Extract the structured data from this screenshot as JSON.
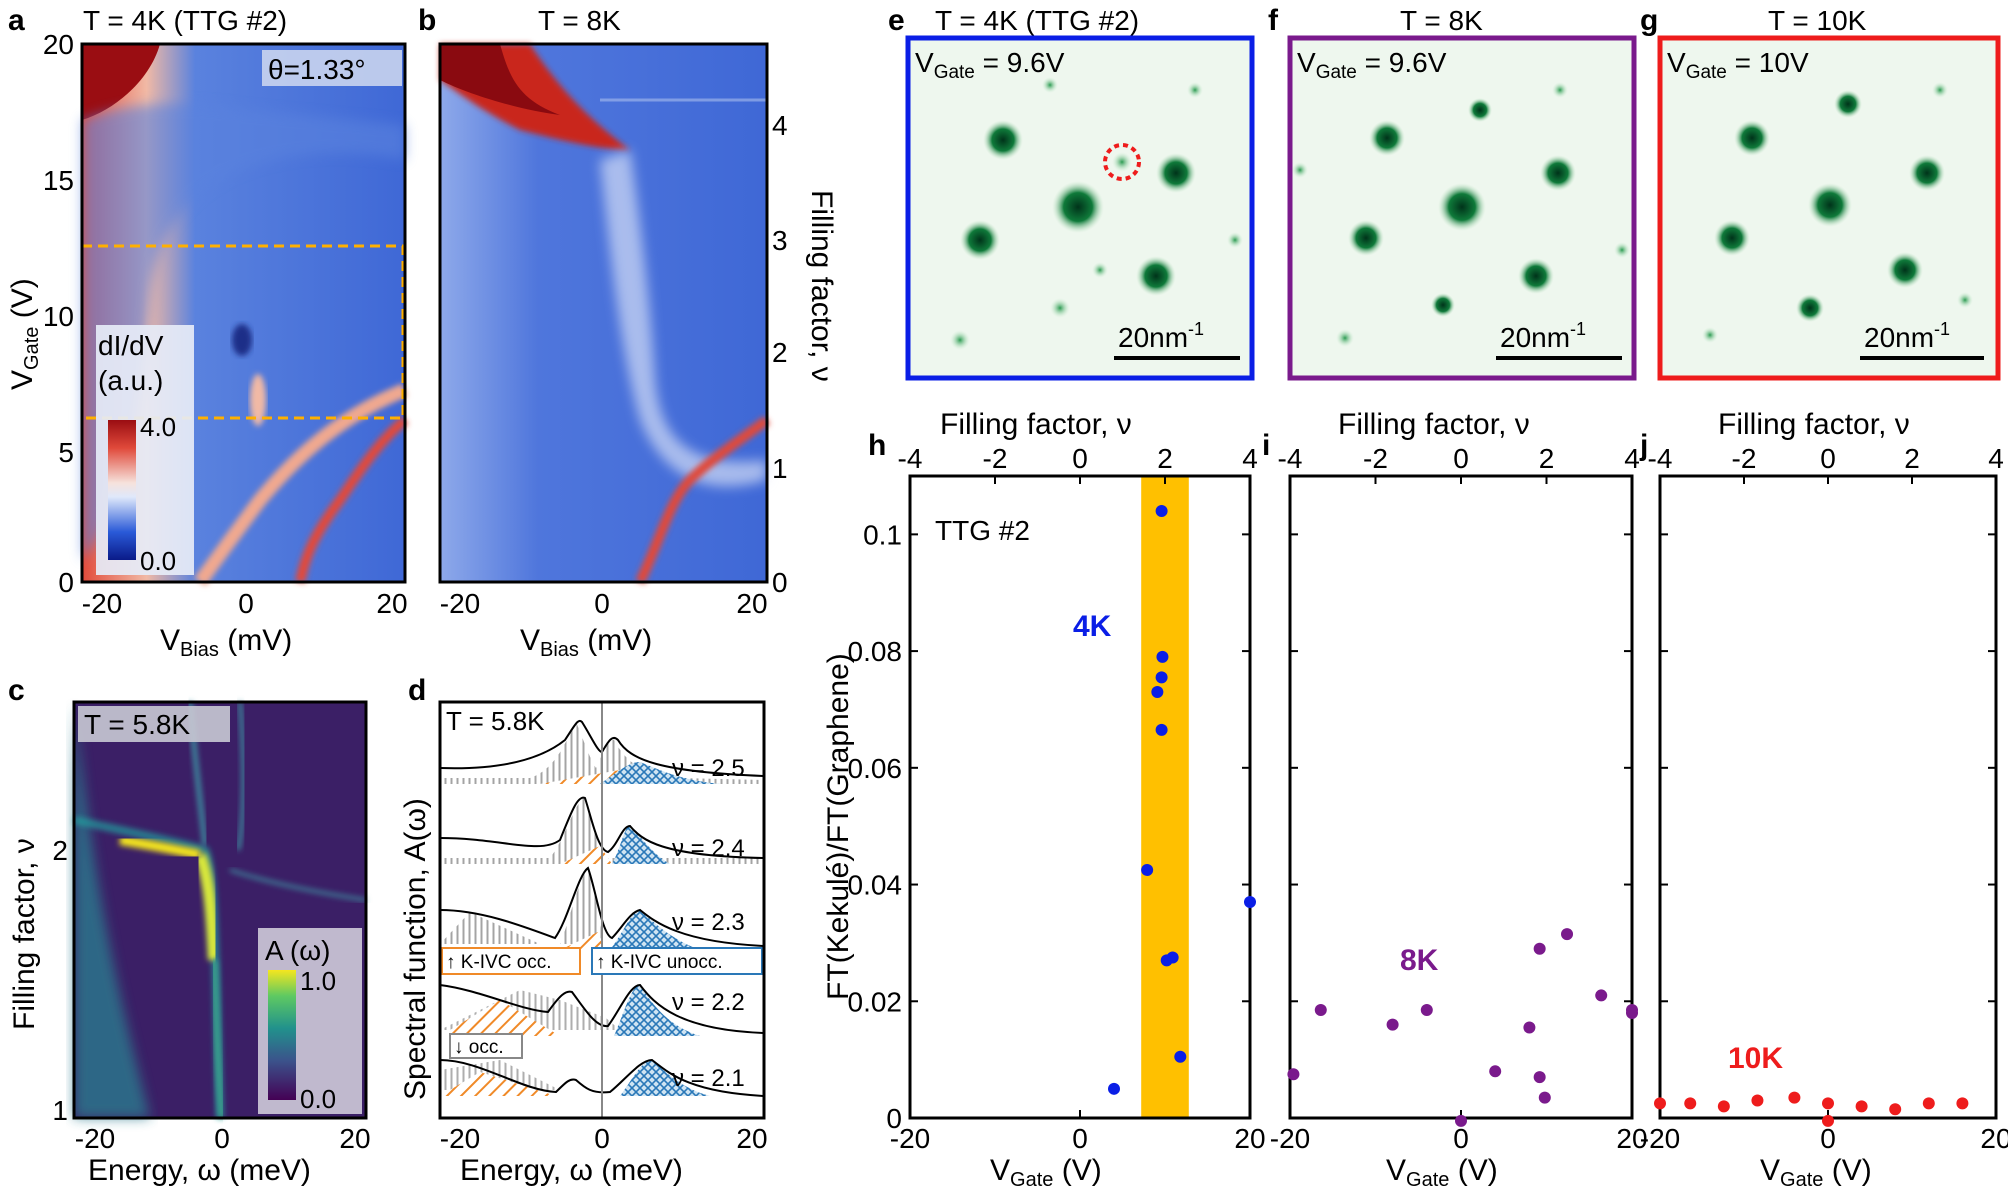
{
  "panels": {
    "a": {
      "letter": "a",
      "title": "T = 4K (TTG #2)",
      "theta": "θ=1.33°",
      "y_ticks": [
        "20",
        "15",
        "10",
        "5",
        "0"
      ],
      "x_ticks": [
        "-20",
        "0",
        "20"
      ],
      "ylabel_main": "V",
      "ylabel_sub": "Gate",
      "ylabel_unit": " (V)",
      "xlabel_main": "V",
      "xlabel_sub": "Bias",
      "xlabel_unit": " (mV)",
      "cbar_label1": "dI/dV",
      "cbar_label2": "(a.u.)",
      "cbar_max": "4.0",
      "cbar_min": "0.0"
    },
    "b": {
      "letter": "b",
      "title": "T = 8K",
      "y_ticks": [
        "4",
        "3",
        "2",
        "1",
        "0"
      ],
      "x_ticks": [
        "-20",
        "0",
        "20"
      ],
      "ylabel": "Filling factor, ν",
      "xlabel_main": "V",
      "xlabel_sub": "Bias",
      "xlabel_unit": " (mV)"
    },
    "c": {
      "letter": "c",
      "title": "T = 5.8K",
      "y_ticks": [
        "2",
        "1"
      ],
      "x_ticks": [
        "-20",
        "0",
        "20"
      ],
      "ylabel": "Filling factor, ν",
      "xlabel": "Energy, ω (meV)",
      "cbar_label": "A (ω)",
      "cbar_max": "1.0",
      "cbar_min": "0.0"
    },
    "d": {
      "letter": "d",
      "title": "T = 5.8K",
      "curves": [
        "ν = 2.5",
        "ν = 2.4",
        "ν = 2.3",
        "ν = 2.2",
        "ν = 2.1"
      ],
      "legend_occ": "↑ K-IVC occ.",
      "legend_unocc": "↑ K-IVC unocc.",
      "legend_down": "↓ occ.",
      "x_ticks": [
        "-20",
        "0",
        "20"
      ],
      "ylabel": "Spectral function, A(ω)",
      "xlabel": "Energy, ω (meV)"
    },
    "e": {
      "letter": "e",
      "title": "T = 4K (TTG #2)",
      "gate_main": "V",
      "gate_sub": "Gate",
      "gate_val": " = 9.6V",
      "scale": "20nm",
      "scale_sup": "-1"
    },
    "f": {
      "letter": "f",
      "title": "T = 8K",
      "gate_main": "V",
      "gate_sub": "Gate",
      "gate_val": " = 9.6V",
      "scale": "20nm",
      "scale_sup": "-1"
    },
    "g": {
      "letter": "g",
      "title": "T = 10K",
      "gate_main": "V",
      "gate_sub": "Gate",
      "gate_val": " = 10V",
      "scale": "20nm",
      "scale_sup": "-1"
    },
    "h": {
      "letter": "h",
      "top_label": "Filling factor, ν",
      "sample": "TTG #2",
      "temp_label": "4K",
      "ylabel": "FT(Kekulé)/FT(Graphene)",
      "xlabel_main": "V",
      "xlabel_sub": "Gate",
      "xlabel_unit": " (V)"
    },
    "i": {
      "letter": "i",
      "top_label": "Filling factor, ν",
      "temp_label": "8K",
      "xlabel_main": "V",
      "xlabel_sub": "Gate",
      "xlabel_unit": " (V)"
    },
    "j": {
      "letter": "j",
      "top_label": "Filling factor, ν",
      "temp_label": "10K",
      "xlabel_main": "V",
      "xlabel_sub": "Gate",
      "xlabel_unit": " (V)"
    }
  },
  "colors": {
    "blue": "#0a1ee6",
    "purple": "#7a1a8c",
    "red": "#ee1c1c",
    "gold": "#ffc000"
  },
  "chart_data": [
    {
      "panel": "h",
      "type": "scatter",
      "series_name": "4K",
      "color": "#0a1ee6",
      "xlim": [
        -20,
        20
      ],
      "ylim": [
        0,
        0.11
      ],
      "x_ticks": [
        -20,
        0,
        20
      ],
      "y_ticks": [
        0,
        0.02,
        0.04,
        0.06,
        0.08,
        0.1
      ],
      "top_ticks": [
        -4,
        -2,
        0,
        2,
        4
      ],
      "highlight_band": {
        "x_from": 7.2,
        "x_to": 12.8
      },
      "points": [
        {
          "x": 9.6,
          "y": 0.104
        },
        {
          "x": 9.7,
          "y": 0.079
        },
        {
          "x": 9.6,
          "y": 0.0755
        },
        {
          "x": 9.1,
          "y": 0.073
        },
        {
          "x": 9.6,
          "y": 0.0665
        },
        {
          "x": 7.9,
          "y": 0.0425
        },
        {
          "x": 10.2,
          "y": 0.027
        },
        {
          "x": 10.9,
          "y": 0.0275
        },
        {
          "x": 11.8,
          "y": 0.0105
        },
        {
          "x": 4.0,
          "y": 0.005
        },
        {
          "x": 20.0,
          "y": 0.037
        }
      ]
    },
    {
      "panel": "i",
      "type": "scatter",
      "series_name": "8K",
      "color": "#7a1a8c",
      "xlim": [
        -20,
        20
      ],
      "ylim": [
        0,
        0.11
      ],
      "x_ticks": [
        -20,
        0,
        20
      ],
      "top_ticks": [
        -4,
        -2,
        0,
        2,
        4
      ],
      "points": [
        {
          "x": -19.6,
          "y": 0.0075
        },
        {
          "x": -16.4,
          "y": 0.0185
        },
        {
          "x": -8.0,
          "y": 0.016
        },
        {
          "x": -4.0,
          "y": 0.0185
        },
        {
          "x": 0.0,
          "y": -0.0005
        },
        {
          "x": 4.0,
          "y": 0.008
        },
        {
          "x": 8.0,
          "y": 0.0155
        },
        {
          "x": 9.2,
          "y": 0.029
        },
        {
          "x": 9.2,
          "y": 0.007
        },
        {
          "x": 9.8,
          "y": 0.0035
        },
        {
          "x": 12.4,
          "y": 0.0315
        },
        {
          "x": 16.4,
          "y": 0.021
        },
        {
          "x": 20.0,
          "y": 0.0185
        },
        {
          "x": 20.0,
          "y": 0.018
        }
      ]
    },
    {
      "panel": "j",
      "type": "scatter",
      "series_name": "10K",
      "color": "#ee1c1c",
      "xlim": [
        -20,
        20
      ],
      "ylim": [
        0,
        0.11
      ],
      "x_ticks": [
        -20,
        0,
        20
      ],
      "top_ticks": [
        -4,
        -2,
        0,
        2,
        4
      ],
      "points": [
        {
          "x": -20.0,
          "y": 0.0025
        },
        {
          "x": -16.4,
          "y": 0.0025
        },
        {
          "x": -12.4,
          "y": 0.002
        },
        {
          "x": -8.4,
          "y": 0.003
        },
        {
          "x": -4.0,
          "y": 0.0035
        },
        {
          "x": 0.0,
          "y": 0.0025
        },
        {
          "x": 4.0,
          "y": 0.002
        },
        {
          "x": 8.0,
          "y": 0.0015
        },
        {
          "x": 12.0,
          "y": 0.0025
        },
        {
          "x": 16.0,
          "y": 0.0025
        },
        {
          "x": 0.0,
          "y": -0.0005
        }
      ]
    }
  ]
}
